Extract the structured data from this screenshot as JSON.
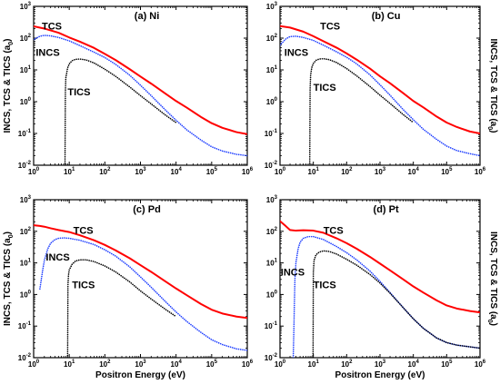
{
  "ylabel": "INCS, TCS & TICS (a",
  "ylabel_sub": "0",
  "ylabel_tail": ")",
  "xlabel": "Positron Energy (eV)",
  "axis": {
    "x_scale": "log",
    "y_scale": "log",
    "xlim": [
      1,
      1000000
    ],
    "ylim": [
      0.01,
      1000
    ],
    "x_ticks": [
      {
        "base": "10",
        "exp": "0"
      },
      {
        "base": "10",
        "exp": "1"
      },
      {
        "base": "10",
        "exp": "2"
      },
      {
        "base": "10",
        "exp": "3"
      },
      {
        "base": "10",
        "exp": "4"
      },
      {
        "base": "10",
        "exp": "5"
      },
      {
        "base": "10",
        "exp": "6"
      }
    ],
    "y_ticks": [
      {
        "base": "10",
        "exp": "-2"
      },
      {
        "base": "10",
        "exp": "-1"
      },
      {
        "base": "10",
        "exp": "0"
      },
      {
        "base": "10",
        "exp": "1"
      },
      {
        "base": "10",
        "exp": "2"
      },
      {
        "base": "10",
        "exp": "3"
      }
    ]
  },
  "colors": {
    "TCS": "#ff0000",
    "INCS": "#1f3fff",
    "TICS": "#000000"
  },
  "chart_data": [
    {
      "type": "line",
      "title": "(a) Ni",
      "series": [
        {
          "name": "TCS",
          "style": "solid",
          "label_at": [
            1.7,
            185
          ],
          "x": [
            1,
            2,
            5,
            10,
            20,
            50,
            100,
            200,
            500,
            1000,
            2000,
            5000,
            10000,
            20000,
            50000,
            100000,
            200000,
            500000,
            1000000
          ],
          "y": [
            235,
            200,
            148,
            105,
            77,
            49,
            32,
            20.5,
            10.5,
            6.2,
            3.7,
            1.8,
            1.05,
            0.65,
            0.33,
            0.21,
            0.15,
            0.11,
            0.095
          ]
        },
        {
          "name": "INCS",
          "style": "dotted",
          "label_at": [
            1.15,
            28
          ],
          "x": [
            1,
            1.5,
            2,
            3,
            5,
            10,
            20,
            50,
            100,
            200,
            500,
            1000,
            2000,
            5000,
            10000,
            20000,
            50000,
            100000,
            200000,
            500000,
            1000000
          ],
          "y": [
            90,
            115,
            122,
            118,
            105,
            82,
            58,
            36,
            24.5,
            15,
            6.8,
            3.3,
            1.55,
            0.55,
            0.26,
            0.13,
            0.062,
            0.038,
            0.028,
            0.022,
            0.02
          ]
        },
        {
          "name": "TICS",
          "style": "dotted",
          "label_at": [
            9,
            1.6
          ],
          "x": [
            7.6,
            7.8,
            8,
            9,
            10,
            12,
            15,
            20,
            30,
            50,
            100,
            200,
            500,
            1000,
            2000,
            5000,
            10000
          ],
          "y": [
            0.01,
            2,
            5.5,
            11.5,
            15.5,
            19.5,
            21.5,
            22,
            20.5,
            16.5,
            10.5,
            6.3,
            2.9,
            1.55,
            0.85,
            0.38,
            0.22
          ]
        }
      ]
    },
    {
      "type": "line",
      "title": "(b) Cu",
      "series": [
        {
          "name": "TCS",
          "style": "solid",
          "label_at": [
            16,
            185
          ],
          "x": [
            1,
            2,
            5,
            10,
            20,
            50,
            100,
            200,
            500,
            1000,
            2000,
            5000,
            10000,
            20000,
            50000,
            100000,
            200000,
            500000,
            1000000
          ],
          "y": [
            240,
            215,
            160,
            115,
            80,
            50,
            33,
            21,
            11,
            6.3,
            3.8,
            1.85,
            1.05,
            0.66,
            0.34,
            0.22,
            0.16,
            0.115,
            0.1
          ]
        },
        {
          "name": "INCS",
          "style": "dotted",
          "label_at": [
            1.35,
            28
          ],
          "x": [
            1,
            1.5,
            2,
            3,
            5,
            10,
            20,
            50,
            100,
            200,
            500,
            1000,
            2000,
            5000,
            10000,
            20000,
            50000,
            100000,
            200000,
            500000,
            1000000
          ],
          "y": [
            60,
            95,
            112,
            115,
            105,
            85,
            60,
            37,
            25,
            15.5,
            7,
            3.4,
            1.6,
            0.56,
            0.27,
            0.135,
            0.065,
            0.04,
            0.029,
            0.023,
            0.02
          ]
        },
        {
          "name": "TICS",
          "style": "dotted",
          "label_at": [
            10,
            2.2
          ],
          "x": [
            7.8,
            8,
            8.3,
            9,
            10,
            12,
            15,
            20,
            30,
            50,
            100,
            200,
            500,
            1000,
            2000,
            5000,
            10000
          ],
          "y": [
            0.01,
            2.5,
            7,
            12,
            16,
            20,
            22,
            22.5,
            21,
            17,
            11,
            6.5,
            3,
            1.6,
            0.88,
            0.39,
            0.22
          ]
        }
      ]
    },
    {
      "type": "line",
      "title": "(c) Pd",
      "series": [
        {
          "name": "TCS",
          "style": "solid",
          "label_at": [
            13,
            85
          ],
          "x": [
            1,
            1.5,
            2,
            3,
            5,
            10,
            20,
            50,
            100,
            200,
            500,
            1000,
            2000,
            5000,
            10000,
            20000,
            50000,
            100000,
            200000,
            500000,
            1000000
          ],
          "y": [
            155,
            148,
            140,
            125,
            110,
            95,
            75,
            52,
            37,
            25,
            14,
            8.5,
            5.2,
            2.6,
            1.55,
            0.95,
            0.5,
            0.33,
            0.25,
            0.2,
            0.18
          ]
        },
        {
          "name": "INCS",
          "style": "dotted",
          "label_at": [
            2.2,
            12
          ],
          "x": [
            1.5,
            1.8,
            2,
            2.5,
            3,
            4,
            5,
            7,
            10,
            20,
            50,
            100,
            200,
            500,
            1000,
            2000,
            5000,
            10000,
            20000,
            50000,
            100000,
            200000,
            500000,
            1000000
          ],
          "y": [
            1.5,
            6,
            12,
            28,
            42,
            55,
            60,
            62,
            60,
            52,
            38,
            26,
            16.5,
            7.5,
            3.6,
            1.7,
            0.6,
            0.28,
            0.14,
            0.063,
            0.037,
            0.026,
            0.019,
            0.017
          ]
        },
        {
          "name": "TICS",
          "style": "dotted",
          "label_at": [
            12,
            1.6
          ],
          "x": [
            9,
            9.2,
            9.5,
            10,
            12,
            15,
            20,
            30,
            50,
            100,
            200,
            500,
            1000,
            2000,
            5000,
            10000
          ],
          "y": [
            0.01,
            2,
            4,
            6,
            9,
            11.5,
            12.5,
            12.5,
            11,
            8,
            5.2,
            2.5,
            1.3,
            0.72,
            0.34,
            0.2
          ]
        }
      ]
    },
    {
      "type": "line",
      "title": "(d) Pt",
      "series": [
        {
          "name": "TCS",
          "style": "solid",
          "label_at": [
            20,
            85
          ],
          "x": [
            1,
            1.5,
            2,
            3,
            5,
            10,
            20,
            50,
            100,
            200,
            500,
            1000,
            2000,
            5000,
            10000,
            20000,
            50000,
            100000,
            200000,
            500000,
            1000000
          ],
          "y": [
            210,
            145,
            110,
            105,
            108,
            105,
            90,
            60,
            42,
            28,
            15.5,
            9.5,
            5.8,
            3,
            1.8,
            1.15,
            0.65,
            0.45,
            0.36,
            0.3,
            0.27
          ]
        },
        {
          "name": "INCS",
          "style": "dotted",
          "label_at": [
            1.05,
            4
          ],
          "x": [
            2.5,
            2.8,
            3,
            3.5,
            4,
            5,
            7,
            10,
            20,
            50,
            100,
            200,
            500,
            1000,
            2000,
            5000,
            10000,
            20000,
            50000,
            100000,
            200000,
            500000,
            1000000
          ],
          "y": [
            0.01,
            3,
            10,
            28,
            45,
            60,
            68,
            68,
            55,
            33,
            21,
            12.5,
            5.5,
            2.6,
            1.15,
            0.38,
            0.17,
            0.085,
            0.042,
            0.03,
            0.025,
            0.022,
            0.02
          ]
        },
        {
          "name": "TICS",
          "style": "dotted",
          "label_at": [
            10,
            1.6
          ],
          "x": [
            9.8,
            10,
            10.5,
            12,
            15,
            20,
            30,
            50,
            100,
            200,
            500,
            1000,
            2000,
            5000,
            10000,
            20000,
            50000,
            100000,
            200000,
            500000,
            1000000
          ],
          "y": [
            0.01,
            5,
            12,
            18,
            22,
            24,
            23,
            19,
            13,
            8.5,
            4.3,
            2.3,
            1.1,
            0.38,
            0.17,
            0.085,
            0.042,
            0.03,
            0.025,
            0.022,
            0.02
          ]
        }
      ]
    }
  ]
}
